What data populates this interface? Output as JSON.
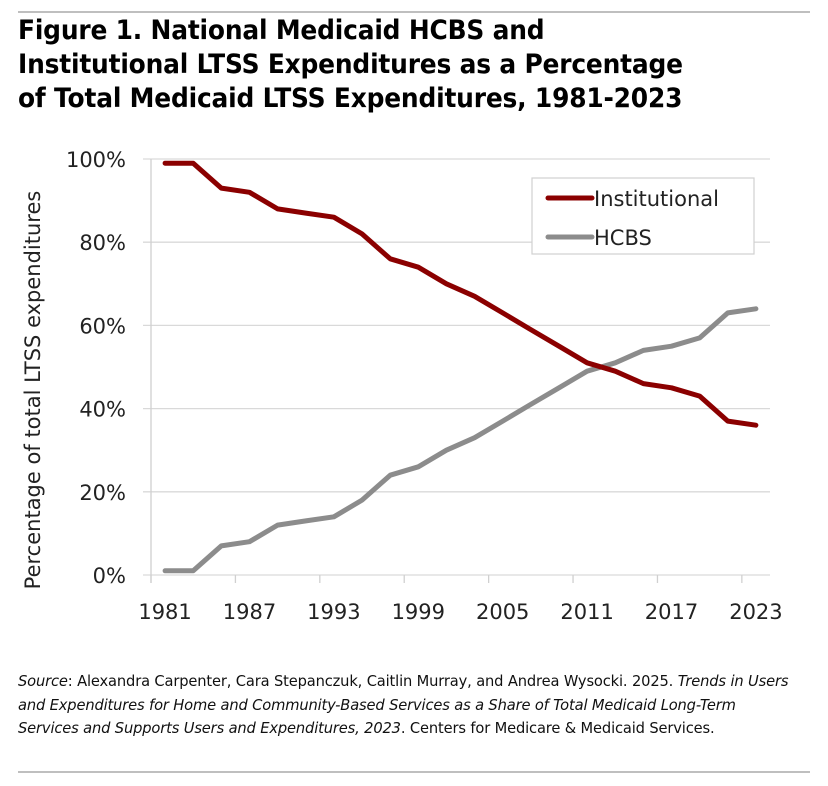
{
  "title": "Figure 1. National Medicaid HCBS and Institutional LTSS Expenditures as a Percentage of Total Medicaid LTSS Expenditures, 1981-2023",
  "title_lines": [
    "Figure 1. National Medicaid HCBS and",
    "Institutional LTSS Expenditures as a Percentage",
    "of Total Medicaid LTSS Expenditures, 1981-2023"
  ],
  "chart_data": {
    "type": "line",
    "title": "Figure 1. National Medicaid HCBS and Institutional LTSS Expenditures as a Percentage of Total Medicaid LTSS Expenditures, 1981-2023",
    "xlabel": "",
    "ylabel": "Percentage of total LTSS expenditures",
    "x": [
      1981,
      1983,
      1985,
      1987,
      1989,
      1991,
      1993,
      1995,
      1997,
      1999,
      2001,
      2003,
      2005,
      2007,
      2009,
      2011,
      2013,
      2015,
      2017,
      2019,
      2021,
      2023
    ],
    "x_tick_labels": [
      "1981",
      "1987",
      "1993",
      "1999",
      "2005",
      "2011",
      "2017",
      "2023"
    ],
    "y_tick_labels": [
      "0%",
      "20%",
      "40%",
      "60%",
      "80%",
      "100%"
    ],
    "y_ticks": [
      0,
      20,
      40,
      60,
      80,
      100
    ],
    "ylim": [
      0,
      100
    ],
    "grid": true,
    "legend_position": "top-right",
    "series": [
      {
        "name": "Institutional",
        "color": "#8b0000",
        "values": [
          99,
          99,
          93,
          92,
          88,
          87,
          86,
          82,
          76,
          74,
          70,
          67,
          63,
          59,
          55,
          51,
          49,
          46,
          45,
          43,
          37,
          36
        ]
      },
      {
        "name": "HCBS",
        "color": "#8c8c8c",
        "values": [
          1,
          1,
          7,
          8,
          12,
          13,
          14,
          18,
          24,
          26,
          30,
          33,
          37,
          41,
          45,
          49,
          51,
          54,
          55,
          57,
          63,
          64
        ]
      }
    ]
  },
  "source": {
    "label": "Source",
    "part1": ": Alexandra Carpenter, Cara Stepanczuk, Caitlin Murray, and Andrea Wysocki. 2025. ",
    "report_title": "Trends in Users and Expenditures for Home and Community-Based Services as a Share of Total Medicaid Long-Term Services and Supports Users and Expenditures, 2023",
    "part2": ". Centers for Medicare & Medicaid Services."
  }
}
